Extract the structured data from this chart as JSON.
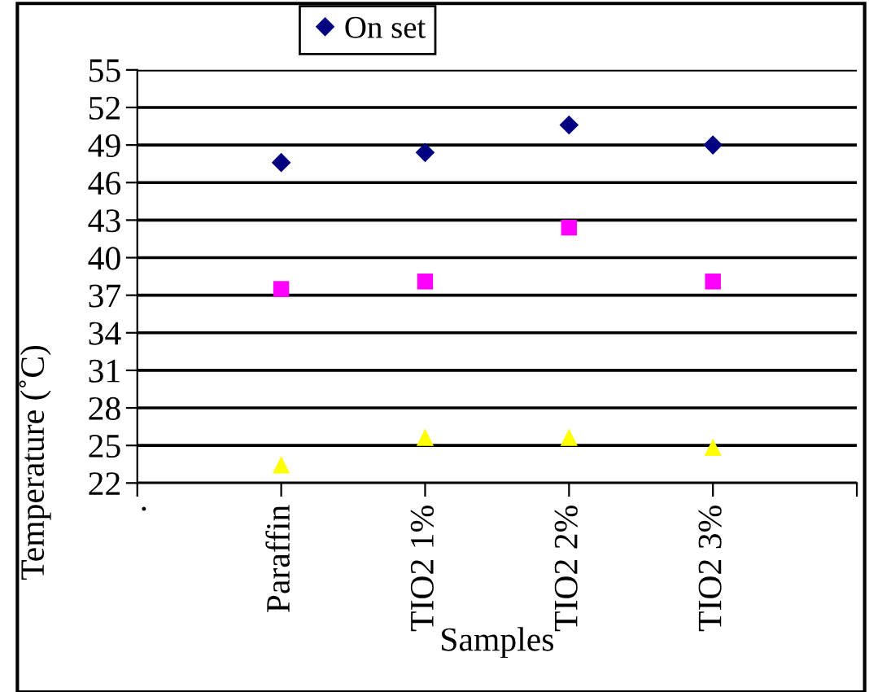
{
  "chart_data": {
    "type": "scatter",
    "xlabel": "Samples",
    "ylabel": "Temperature (˚C)",
    "categories": [
      ".",
      "Paraffin",
      "TIO2 1%",
      "TIO2 2%",
      "TIO2 3%"
    ],
    "series": [
      {
        "name": "On set",
        "color": "#000080",
        "marker": "diamond",
        "values": [
          null,
          47.6,
          48.4,
          50.6,
          49.0
        ]
      },
      {
        "color": "#ff00ff",
        "marker": "square",
        "values": [
          null,
          37.5,
          38.1,
          42.4,
          38.1
        ]
      },
      {
        "color": "#ffff00",
        "marker": "triangle",
        "values": [
          null,
          23.4,
          25.6,
          25.6,
          24.8
        ]
      }
    ],
    "ylim": [
      22,
      55
    ],
    "yticks": [
      22,
      25,
      28,
      31,
      34,
      37,
      40,
      43,
      46,
      49,
      52,
      55
    ],
    "grid": "y",
    "legend": "top"
  }
}
